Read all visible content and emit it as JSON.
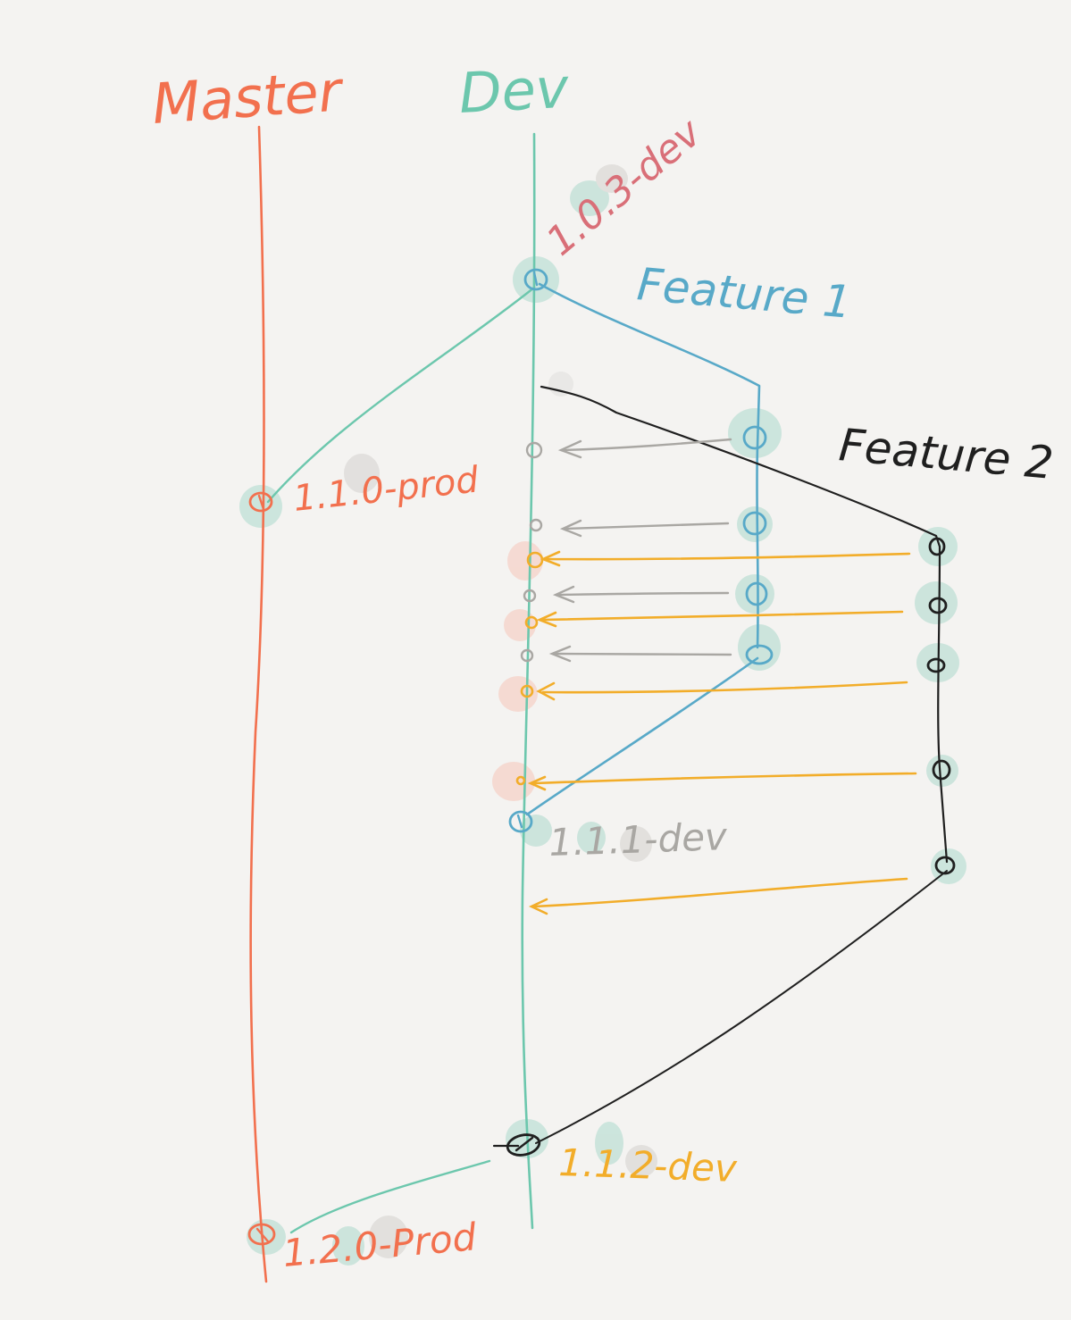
{
  "colors": {
    "master": "#f2704e",
    "dev": "#6cc7ad",
    "feature1": "#58a9c8",
    "feature2": "#1f1f1f",
    "merge_gray": "#a9a7a3",
    "merge_yellow": "#f2ad2a",
    "tag_103": "#d96f78",
    "tag_110": "#f2704e",
    "tag_111": "#a9a7a3",
    "tag_112": "#f2ad2a",
    "tag_120": "#f2704e",
    "smudge_green": "#bfe0d6",
    "smudge_gray": "#dcdad7",
    "smudge_red": "#f6d2c8"
  },
  "branches": {
    "master": "Master",
    "dev": "Dev",
    "feature1": "Feature 1",
    "feature2": "Feature 2"
  },
  "tags": {
    "v103": "1.0.3-dev",
    "v110": "1.1.0-prod",
    "v111": "1.1.1-dev",
    "v112": "1.1.2-dev",
    "v120": "1.2.0-Prod"
  }
}
